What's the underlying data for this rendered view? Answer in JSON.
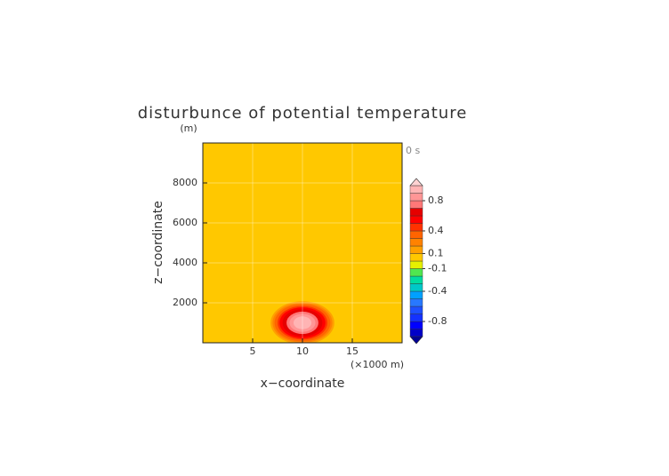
{
  "chart_data": {
    "type": "contour",
    "title": "disturbunce of potential temperature",
    "y_unit": "(m)",
    "time_label": "0 s",
    "x_label": "x−coordinate",
    "x_unit": "(×1000 m)",
    "y_label": "z−coordinate",
    "xlim": [
      0,
      20
    ],
    "ylim": [
      0,
      10000
    ],
    "xticks": [
      5,
      10,
      15
    ],
    "yticks": [
      2000,
      4000,
      6000,
      8000
    ],
    "grid": true,
    "background_color": "#ffc800",
    "center": [
      10,
      1000
    ],
    "contours": [
      {
        "level": 0.1,
        "rx": 3.2,
        "rz": 1080
      },
      {
        "level": 0.2,
        "rx": 3.0,
        "rz": 1000
      },
      {
        "level": 0.3,
        "rx": 2.8,
        "rz": 930
      },
      {
        "level": 0.4,
        "rx": 2.5,
        "rz": 840
      },
      {
        "level": 0.5,
        "rx": 2.3,
        "rz": 770
      },
      {
        "level": 0.6,
        "rx": 2.0,
        "rz": 680
      },
      {
        "level": 0.7,
        "rx": 1.6,
        "rz": 560
      },
      {
        "level": 0.8,
        "rx": 1.3,
        "rz": 450
      },
      {
        "level": 0.9,
        "rx": 0.9,
        "rz": 320
      }
    ],
    "colorbar": {
      "lim": [
        -1.0,
        1.0
      ],
      "colors": [
        "#0000c8",
        "#0000ff",
        "#1432ff",
        "#1e50ff",
        "#2878ff",
        "#00a0ff",
        "#00c8c8",
        "#00dca0",
        "#50e650",
        "#e6f000",
        "#ffc800",
        "#ffa000",
        "#ff8200",
        "#ff6400",
        "#ff3200",
        "#ff0000",
        "#e60000",
        "#ff7878",
        "#ff9696",
        "#ffb4b4"
      ],
      "low_color": "#000096",
      "high_color": "#ffd2d2",
      "ticks": [
        -0.8,
        -0.4,
        -0.1,
        0.1,
        0.4,
        0.8
      ]
    }
  }
}
